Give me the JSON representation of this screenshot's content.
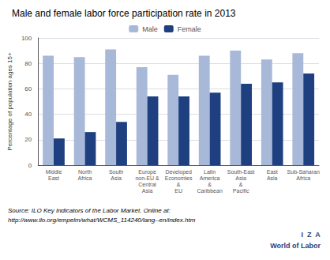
{
  "chart_data": {
    "type": "bar",
    "title": "Male and female labor force participation rate in 2013",
    "y_label": "Percentage of population ages 15+",
    "categories": [
      "Middle\nEast",
      "North\nAfrica",
      "South\nAsia",
      "Europe\nnon-EU &\nCentral\nAsia",
      "Developed\nEconomies\n&\nEU",
      "Latin\nAmerica\n&\nCaribbean",
      "South-East\nAsia\n&\nPacific",
      "East\nAsia",
      "Sub-Saharan\nAfrica"
    ],
    "series": [
      {
        "name": "Male",
        "color": "#a8b8d8",
        "values": [
          86,
          85,
          91,
          77,
          71,
          86,
          90,
          83,
          88
        ]
      },
      {
        "name": "Female",
        "color": "#1f4080",
        "values": [
          21,
          26,
          34,
          54,
          54,
          57,
          64,
          65,
          72
        ]
      }
    ],
    "ylim": [
      0,
      100
    ],
    "yticks": [
      0,
      20,
      40,
      60,
      80,
      100
    ],
    "grid": true,
    "legend": "top",
    "annotations": [
      "Source: ILO Key Indicators of the Labor Market. Online at:",
      "http://www.ilo.org/empelm/what/WCMS_114240/lang--en/index.htm",
      "I  Z  A",
      "World of Labor"
    ]
  }
}
